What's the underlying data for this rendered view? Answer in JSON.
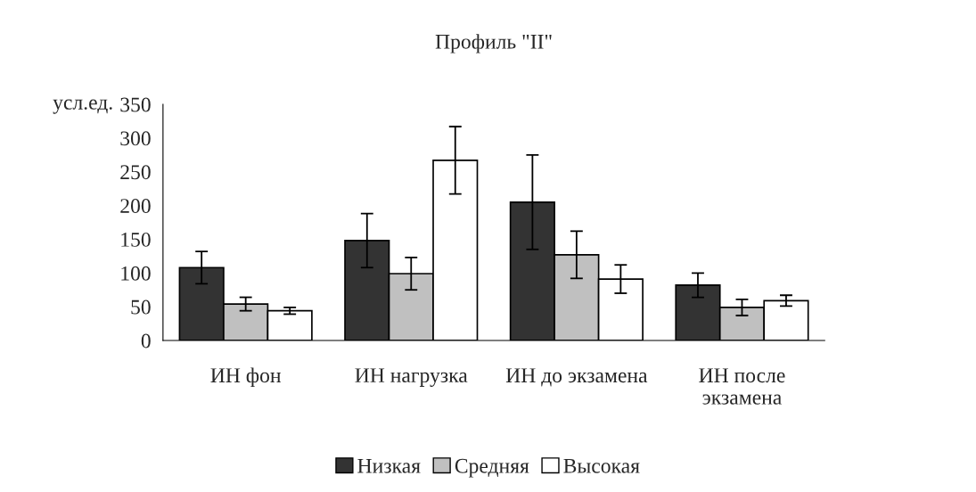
{
  "chart_data": {
    "type": "bar",
    "title": "Профиль \"II\"",
    "ylabel": "усл.ед.",
    "categories": [
      "ИН фон",
      "ИН нагрузка",
      "ИН до экзамена",
      "ИН после\nэкзамена"
    ],
    "series": [
      {
        "name": "Низкая",
        "color": "#333333",
        "values": [
          108,
          148,
          205,
          82
        ],
        "errors": [
          24,
          40,
          70,
          18
        ]
      },
      {
        "name": "Средняя",
        "color": "#c0c0c0",
        "values": [
          54,
          99,
          127,
          49
        ],
        "errors": [
          10,
          24,
          35,
          12
        ]
      },
      {
        "name": "Высокая",
        "color": "#ffffff",
        "values": [
          44,
          267,
          91,
          59
        ],
        "errors": [
          5,
          50,
          21,
          8
        ]
      }
    ],
    "ylim": [
      0,
      350
    ],
    "yticks": [
      0,
      50,
      100,
      150,
      200,
      250,
      300,
      350
    ],
    "grid": false,
    "legend": "bottom"
  }
}
